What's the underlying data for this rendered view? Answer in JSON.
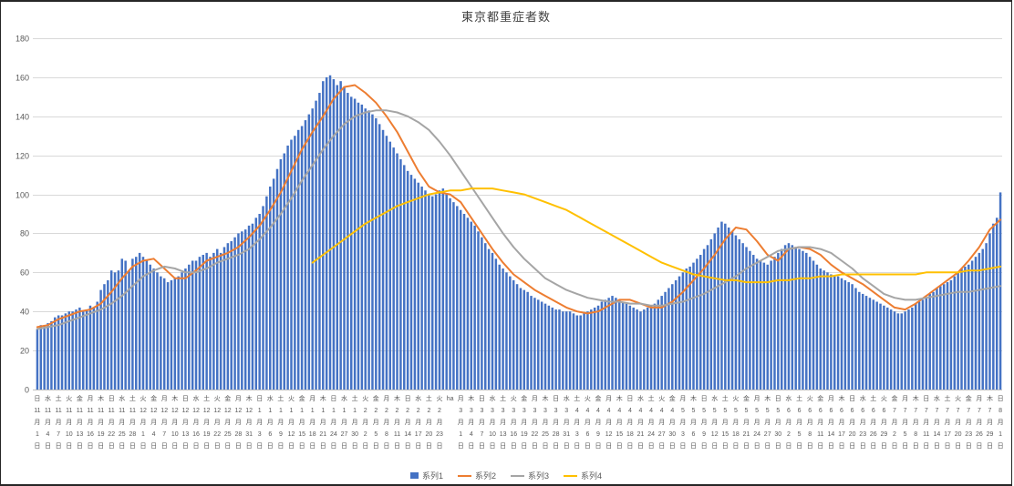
{
  "title": "東京都重症者数",
  "legend": {
    "items": [
      {
        "label": "系列1",
        "color": "#4472C4",
        "marker": "bar"
      },
      {
        "label": "系列2",
        "color": "#ED7D31",
        "marker": "line"
      },
      {
        "label": "系列3",
        "color": "#A5A5A5",
        "marker": "line"
      },
      {
        "label": "系列4",
        "color": "#FFC000",
        "marker": "line"
      }
    ]
  },
  "chart_data": {
    "type": "bar",
    "title": "東京都重症者数",
    "ylim": [
      0,
      180
    ],
    "y_ticks": [
      0,
      20,
      40,
      60,
      80,
      100,
      120,
      140,
      160,
      180
    ],
    "grid": "horizontal",
    "legend_position": "bottom",
    "x_label_interval_days": 3,
    "x_range": "11月1日〜8月1日",
    "series": [
      {
        "name": "系列1",
        "type": "bar",
        "color": "#4472C4",
        "every": 1,
        "values": [
          31,
          33,
          33,
          34,
          35,
          37,
          38,
          38,
          39,
          40,
          40,
          41,
          42,
          40,
          41,
          43,
          42,
          45,
          51,
          54,
          56,
          61,
          60,
          61,
          67,
          66,
          61,
          67,
          68,
          70,
          68,
          66,
          64,
          62,
          60,
          58,
          57,
          55,
          56,
          57,
          58,
          60,
          62,
          64,
          66,
          66,
          68,
          69,
          70,
          68,
          70,
          72,
          70,
          73,
          75,
          76,
          78,
          80,
          81,
          82,
          84,
          85,
          88,
          90,
          94,
          99,
          104,
          108,
          113,
          118,
          121,
          125,
          128,
          130,
          133,
          135,
          138,
          141,
          144,
          148,
          152,
          158,
          160,
          161,
          159,
          156,
          158,
          155,
          152,
          150,
          149,
          147,
          146,
          144,
          143,
          141,
          139,
          136,
          133,
          130,
          127,
          124,
          121,
          118,
          115,
          112,
          110,
          108,
          106,
          104,
          102,
          100,
          99,
          100,
          102,
          103,
          100,
          98,
          96,
          94,
          92,
          90,
          88,
          86,
          84,
          81,
          78,
          75,
          72,
          70,
          67,
          64,
          62,
          60,
          58,
          56,
          54,
          52,
          51,
          50,
          48,
          47,
          46,
          45,
          44,
          43,
          42,
          41,
          41,
          40,
          40,
          40,
          39,
          38,
          38,
          39,
          40,
          41,
          42,
          43,
          45,
          46,
          47,
          48,
          47,
          46,
          45,
          44,
          43,
          42,
          41,
          40,
          41,
          42,
          43,
          44,
          46,
          48,
          50,
          52,
          54,
          56,
          58,
          60,
          62,
          63,
          65,
          67,
          69,
          72,
          74,
          77,
          80,
          83,
          86,
          85,
          83,
          81,
          79,
          77,
          75,
          73,
          71,
          69,
          67,
          66,
          65,
          64,
          66,
          68,
          70,
          72,
          74,
          75,
          74,
          73,
          72,
          71,
          70,
          68,
          66,
          64,
          62,
          61,
          60,
          59,
          58,
          58,
          57,
          56,
          55,
          54,
          52,
          50,
          49,
          48,
          47,
          46,
          45,
          44,
          43,
          42,
          41,
          40,
          39,
          39,
          40,
          41,
          42,
          44,
          45,
          46,
          47,
          49,
          50,
          52,
          53,
          54,
          55,
          56,
          58,
          60,
          62,
          63,
          64,
          66,
          68,
          70,
          72,
          75,
          80,
          85,
          88,
          101
        ]
      },
      {
        "name": "系列2",
        "type": "line",
        "color": "#ED7D31",
        "every": 3,
        "values": [
          32,
          33,
          36,
          38,
          40,
          41,
          44,
          50,
          57,
          63,
          66,
          67,
          62,
          57,
          57,
          61,
          66,
          68,
          70,
          73,
          78,
          84,
          92,
          101,
          112,
          123,
          132,
          140,
          149,
          155,
          156,
          152,
          147,
          140,
          132,
          122,
          112,
          104,
          101,
          100,
          96,
          88,
          80,
          72,
          65,
          59,
          55,
          51,
          48,
          45,
          42,
          40,
          39,
          40,
          43,
          46,
          46,
          44,
          42,
          42,
          45,
          50,
          56,
          62,
          69,
          77,
          83,
          82,
          76,
          69,
          66,
          72,
          73,
          72,
          69,
          64,
          60,
          57,
          54,
          50,
          46,
          42,
          41,
          44,
          48,
          52,
          56,
          60,
          66,
          73,
          82,
          87
        ]
      },
      {
        "name": "系列3",
        "type": "line",
        "color": "#A5A5A5",
        "every": 3,
        "values": [
          31,
          32,
          33,
          35,
          37,
          39,
          41,
          44,
          48,
          53,
          58,
          61,
          63,
          62,
          60,
          60,
          62,
          65,
          67,
          69,
          72,
          77,
          83,
          90,
          98,
          107,
          115,
          123,
          130,
          136,
          140,
          142,
          143,
          143,
          142,
          140,
          137,
          133,
          127,
          120,
          112,
          104,
          96,
          88,
          80,
          73,
          67,
          62,
          57,
          54,
          51,
          49,
          47,
          46,
          45,
          45,
          44,
          44,
          43,
          43,
          44,
          45,
          47,
          49,
          52,
          55,
          58,
          62,
          65,
          68,
          71,
          72,
          73,
          73,
          72,
          70,
          66,
          62,
          57,
          53,
          49,
          47,
          46,
          46,
          47,
          48,
          49,
          50,
          50,
          51,
          52,
          53
        ]
      },
      {
        "name": "系列4",
        "type": "line",
        "color": "#FFC000",
        "every": 3,
        "values": [
          null,
          null,
          null,
          null,
          null,
          null,
          null,
          null,
          null,
          null,
          null,
          null,
          null,
          null,
          null,
          null,
          null,
          null,
          null,
          null,
          null,
          null,
          null,
          null,
          null,
          null,
          65,
          69,
          73,
          77,
          81,
          85,
          88,
          91,
          94,
          96,
          98,
          100,
          101,
          102,
          102,
          103,
          103,
          103,
          102,
          101,
          100,
          98,
          96,
          94,
          92,
          89,
          86,
          83,
          80,
          77,
          74,
          71,
          68,
          65,
          63,
          61,
          59,
          58,
          57,
          56,
          56,
          55,
          55,
          55,
          56,
          56,
          57,
          57,
          58,
          58,
          59,
          59,
          59,
          59,
          59,
          59,
          59,
          59,
          60,
          60,
          60,
          60,
          61,
          61,
          62,
          63
        ]
      }
    ],
    "x_labels": [
      [
        "日",
        "11",
        "月",
        "1",
        "日"
      ],
      [
        "水",
        "11",
        "月",
        "4",
        "日"
      ],
      [
        "土",
        "11",
        "月",
        "7",
        "日"
      ],
      [
        "火",
        "11",
        "月",
        "10",
        "日"
      ],
      [
        "金",
        "11",
        "月",
        "13",
        "日"
      ],
      [
        "月",
        "11",
        "月",
        "16",
        "日"
      ],
      [
        "木",
        "11",
        "月",
        "19",
        "日"
      ],
      [
        "日",
        "11",
        "月",
        "22",
        "日"
      ],
      [
        "水",
        "11",
        "月",
        "25",
        "日"
      ],
      [
        "土",
        "11",
        "月",
        "28",
        "日"
      ],
      [
        "火",
        "12",
        "月",
        "1",
        "日"
      ],
      [
        "金",
        "12",
        "月",
        "4",
        "日"
      ],
      [
        "月",
        "12",
        "月",
        "7",
        "日"
      ],
      [
        "木",
        "12",
        "月",
        "10",
        "日"
      ],
      [
        "日",
        "12",
        "月",
        "13",
        "日"
      ],
      [
        "水",
        "12",
        "月",
        "16",
        "日"
      ],
      [
        "土",
        "12",
        "月",
        "19",
        "日"
      ],
      [
        "火",
        "12",
        "月",
        "22",
        "日"
      ],
      [
        "金",
        "12",
        "月",
        "25",
        "日"
      ],
      [
        "月",
        "12",
        "月",
        "28",
        "日"
      ],
      [
        "木",
        "12",
        "月",
        "31",
        "日"
      ],
      [
        "日",
        "1",
        "月",
        "3",
        "日"
      ],
      [
        "水",
        "1",
        "月",
        "6",
        "日"
      ],
      [
        "土",
        "1",
        "月",
        "9",
        "日"
      ],
      [
        "火",
        "1",
        "月",
        "12",
        "日"
      ],
      [
        "金",
        "1",
        "月",
        "15",
        "日"
      ],
      [
        "月",
        "1",
        "月",
        "18",
        "日"
      ],
      [
        "木",
        "1",
        "月",
        "21",
        "日"
      ],
      [
        "日",
        "1",
        "月",
        "24",
        "日"
      ],
      [
        "水",
        "1",
        "月",
        "27",
        "日"
      ],
      [
        "土",
        "1",
        "月",
        "30",
        "日"
      ],
      [
        "火",
        "2",
        "月",
        "2",
        "日"
      ],
      [
        "金",
        "2",
        "月",
        "5",
        "日"
      ],
      [
        "月",
        "2",
        "月",
        "8",
        "日"
      ],
      [
        "木",
        "2",
        "月",
        "11",
        "日"
      ],
      [
        "日",
        "2",
        "月",
        "14",
        "日"
      ],
      [
        "水",
        "2",
        "月",
        "17",
        "日"
      ],
      [
        "土",
        "2",
        "月",
        "20",
        "日"
      ],
      [
        "火",
        "2",
        "月",
        "23",
        "日"
      ],
      [
        "ha"
      ],
      [
        "月",
        "3",
        "月",
        "1",
        "日"
      ],
      [
        "木",
        "3",
        "月",
        "4",
        "日"
      ],
      [
        "日",
        "3",
        "月",
        "7",
        "日"
      ],
      [
        "水",
        "3",
        "月",
        "10",
        "日"
      ],
      [
        "土",
        "3",
        "月",
        "13",
        "日"
      ],
      [
        "火",
        "3",
        "月",
        "16",
        "日"
      ],
      [
        "金",
        "3",
        "月",
        "19",
        "日"
      ],
      [
        "月",
        "3",
        "月",
        "22",
        "日"
      ],
      [
        "木",
        "3",
        "月",
        "25",
        "日"
      ],
      [
        "日",
        "3",
        "月",
        "28",
        "日"
      ],
      [
        "水",
        "3",
        "月",
        "31",
        "日"
      ],
      [
        "土",
        "4",
        "月",
        "3",
        "日"
      ],
      [
        "火",
        "4",
        "月",
        "6",
        "日"
      ],
      [
        "金",
        "4",
        "月",
        "9",
        "日"
      ],
      [
        "月",
        "4",
        "月",
        "12",
        "日"
      ],
      [
        "木",
        "4",
        "月",
        "15",
        "日"
      ],
      [
        "日",
        "4",
        "月",
        "18",
        "日"
      ],
      [
        "水",
        "4",
        "月",
        "21",
        "日"
      ],
      [
        "土",
        "4",
        "月",
        "24",
        "日"
      ],
      [
        "火",
        "4",
        "月",
        "27",
        "日"
      ],
      [
        "金",
        "4",
        "月",
        "30",
        "日"
      ],
      [
        "月",
        "5",
        "月",
        "3",
        "日"
      ],
      [
        "木",
        "5",
        "月",
        "6",
        "日"
      ],
      [
        "日",
        "5",
        "月",
        "9",
        "日"
      ],
      [
        "水",
        "5",
        "月",
        "12",
        "日"
      ],
      [
        "土",
        "5",
        "月",
        "15",
        "日"
      ],
      [
        "火",
        "5",
        "月",
        "18",
        "日"
      ],
      [
        "金",
        "5",
        "月",
        "21",
        "日"
      ],
      [
        "月",
        "5",
        "月",
        "24",
        "日"
      ],
      [
        "木",
        "5",
        "月",
        "27",
        "日"
      ],
      [
        "日",
        "5",
        "月",
        "30",
        "日"
      ],
      [
        "水",
        "6",
        "月",
        "2",
        "日"
      ],
      [
        "土",
        "6",
        "月",
        "5",
        "日"
      ],
      [
        "火",
        "6",
        "月",
        "8",
        "日"
      ],
      [
        "金",
        "6",
        "月",
        "11",
        "日"
      ],
      [
        "月",
        "6",
        "月",
        "14",
        "日"
      ],
      [
        "木",
        "6",
        "月",
        "17",
        "日"
      ],
      [
        "日",
        "6",
        "月",
        "20",
        "日"
      ],
      [
        "水",
        "6",
        "月",
        "23",
        "日"
      ],
      [
        "土",
        "6",
        "月",
        "26",
        "日"
      ],
      [
        "火",
        "6",
        "月",
        "29",
        "日"
      ],
      [
        "金",
        "7",
        "月",
        "2",
        "日"
      ],
      [
        "月",
        "7",
        "月",
        "5",
        "日"
      ],
      [
        "木",
        "7",
        "月",
        "8",
        "日"
      ],
      [
        "日",
        "7",
        "月",
        "11",
        "日"
      ],
      [
        "水",
        "7",
        "月",
        "14",
        "日"
      ],
      [
        "土",
        "7",
        "月",
        "17",
        "日"
      ],
      [
        "火",
        "7",
        "月",
        "20",
        "日"
      ],
      [
        "金",
        "7",
        "月",
        "23",
        "日"
      ],
      [
        "月",
        "7",
        "月",
        "26",
        "日"
      ],
      [
        "木",
        "7",
        "月",
        "29",
        "日"
      ],
      [
        "日",
        "8",
        "月",
        "1",
        "日"
      ]
    ]
  },
  "colors": {
    "grid": "#D9D9D9",
    "axis": "#BFBFBF",
    "tick_label": "#595959",
    "title_text": "#404040"
  }
}
